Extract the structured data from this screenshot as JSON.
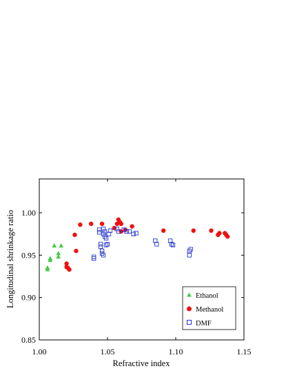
{
  "chart_data": {
    "type": "scatter",
    "xlabel": "Refractive index",
    "ylabel": "Longitudinal shrinkage ratio",
    "xlim": [
      1.0,
      1.15
    ],
    "ylim": [
      0.85,
      1.04
    ],
    "xticks": [
      "1.00",
      "1.05",
      "1.10",
      "1.15"
    ],
    "xtick_values": [
      1.0,
      1.05,
      1.1,
      1.15
    ],
    "yticks": [
      "0.85",
      "0.90",
      "0.95",
      "1.00"
    ],
    "ytick_values": [
      0.85,
      0.9,
      0.95,
      1.0
    ],
    "grid": false,
    "legend_position": "bottom-right",
    "series": [
      {
        "name": "Ethanol",
        "marker": "triangle",
        "color": "#44cc44",
        "points": [
          [
            1.006,
            0.933
          ],
          [
            1.006,
            0.935
          ],
          [
            1.008,
            0.944
          ],
          [
            1.008,
            0.946
          ],
          [
            1.011,
            0.961
          ],
          [
            1.014,
            0.948
          ],
          [
            1.014,
            0.952
          ],
          [
            1.016,
            0.961
          ]
        ]
      },
      {
        "name": "Methanol",
        "marker": "circle",
        "color": "#ee1111",
        "points": [
          [
            1.02,
            0.936
          ],
          [
            1.02,
            0.94
          ],
          [
            1.021,
            0.935
          ],
          [
            1.022,
            0.933
          ],
          [
            1.026,
            0.974
          ],
          [
            1.027,
            0.955
          ],
          [
            1.03,
            0.986
          ],
          [
            1.038,
            0.987
          ],
          [
            1.046,
            0.987
          ],
          [
            1.055,
            0.982
          ],
          [
            1.057,
            0.987
          ],
          [
            1.058,
            0.992
          ],
          [
            1.059,
            0.989
          ],
          [
            1.06,
            0.987
          ],
          [
            1.06,
            0.978
          ],
          [
            1.063,
            0.98
          ],
          [
            1.068,
            0.984
          ],
          [
            1.091,
            0.979
          ],
          [
            1.113,
            0.979
          ],
          [
            1.126,
            0.979
          ],
          [
            1.131,
            0.974
          ],
          [
            1.132,
            0.976
          ],
          [
            1.136,
            0.976
          ],
          [
            1.137,
            0.974
          ],
          [
            1.138,
            0.972
          ]
        ]
      },
      {
        "name": "DMF",
        "marker": "square",
        "color": "#2233cc",
        "points": [
          [
            1.04,
            0.948
          ],
          [
            1.04,
            0.946
          ],
          [
            1.044,
            0.98
          ],
          [
            1.044,
            0.977
          ],
          [
            1.045,
            0.963
          ],
          [
            1.045,
            0.96
          ],
          [
            1.046,
            0.955
          ],
          [
            1.046,
            0.952
          ],
          [
            1.047,
            0.95
          ],
          [
            1.047,
            0.981
          ],
          [
            1.047,
            0.975
          ],
          [
            1.048,
            0.972
          ],
          [
            1.048,
            0.978
          ],
          [
            1.049,
            0.97
          ],
          [
            1.049,
            0.962
          ],
          [
            1.05,
            0.963
          ],
          [
            1.051,
            0.975
          ],
          [
            1.052,
            0.979
          ],
          [
            1.057,
            0.981
          ],
          [
            1.058,
            0.978
          ],
          [
            1.062,
            0.98
          ],
          [
            1.064,
            0.978
          ],
          [
            1.066,
            0.978
          ],
          [
            1.069,
            0.975
          ],
          [
            1.071,
            0.976
          ],
          [
            1.085,
            0.967
          ],
          [
            1.086,
            0.963
          ],
          [
            1.096,
            0.967
          ],
          [
            1.097,
            0.963
          ],
          [
            1.098,
            0.962
          ],
          [
            1.11,
            0.955
          ],
          [
            1.11,
            0.95
          ],
          [
            1.111,
            0.957
          ]
        ]
      }
    ]
  }
}
